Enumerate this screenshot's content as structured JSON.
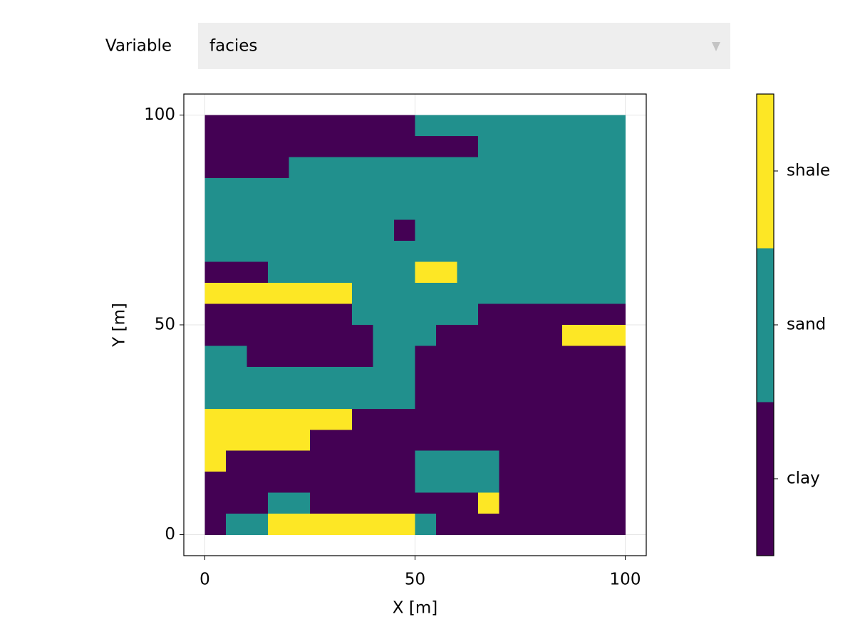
{
  "controls": {
    "label": "Variable",
    "selected": "facies"
  },
  "chart_data": {
    "type": "heatmap",
    "xlabel": "X [m]",
    "ylabel": "Y [m]",
    "xlim": [
      -5,
      105
    ],
    "ylim": [
      -5,
      105
    ],
    "xticks": [
      0,
      50,
      100
    ],
    "yticks": [
      0,
      50,
      100
    ],
    "grid": true,
    "x": [
      2.5,
      7.5,
      12.5,
      17.5,
      22.5,
      27.5,
      32.5,
      37.5,
      42.5,
      47.5,
      52.5,
      57.5,
      62.5,
      67.5,
      72.5,
      77.5,
      82.5,
      87.5,
      92.5,
      97.5
    ],
    "y": [
      97.5,
      92.5,
      87.5,
      82.5,
      77.5,
      72.5,
      67.5,
      62.5,
      57.5,
      52.5,
      47.5,
      42.5,
      37.5,
      32.5,
      27.5,
      22.5,
      17.5,
      12.5,
      7.5,
      2.5
    ],
    "categories": [
      "clay",
      "sand",
      "shale"
    ],
    "colors": [
      "#440154",
      "#21908d",
      "#fde725"
    ],
    "values": [
      [
        0,
        0,
        0,
        0,
        0,
        0,
        0,
        0,
        0,
        0,
        1,
        1,
        1,
        1,
        1,
        1,
        1,
        1,
        1,
        1
      ],
      [
        0,
        0,
        0,
        0,
        0,
        0,
        0,
        0,
        0,
        0,
        0,
        0,
        0,
        1,
        1,
        1,
        1,
        1,
        1,
        1
      ],
      [
        0,
        0,
        0,
        0,
        1,
        1,
        1,
        1,
        1,
        1,
        1,
        1,
        1,
        1,
        1,
        1,
        1,
        1,
        1,
        1
      ],
      [
        1,
        1,
        1,
        1,
        1,
        1,
        1,
        1,
        1,
        1,
        1,
        1,
        1,
        1,
        1,
        1,
        1,
        1,
        1,
        1
      ],
      [
        1,
        1,
        1,
        1,
        1,
        1,
        1,
        1,
        1,
        1,
        1,
        1,
        1,
        1,
        1,
        1,
        1,
        1,
        1,
        1
      ],
      [
        1,
        1,
        1,
        1,
        1,
        1,
        1,
        1,
        1,
        0,
        1,
        1,
        1,
        1,
        1,
        1,
        1,
        1,
        1,
        1
      ],
      [
        1,
        1,
        1,
        1,
        1,
        1,
        1,
        1,
        1,
        1,
        1,
        1,
        1,
        1,
        1,
        1,
        1,
        1,
        1,
        1
      ],
      [
        0,
        0,
        0,
        1,
        1,
        1,
        1,
        1,
        1,
        1,
        2,
        2,
        1,
        1,
        1,
        1,
        1,
        1,
        1,
        1
      ],
      [
        2,
        2,
        2,
        2,
        2,
        2,
        2,
        1,
        1,
        1,
        1,
        1,
        1,
        1,
        1,
        1,
        1,
        1,
        1,
        1
      ],
      [
        0,
        0,
        0,
        0,
        0,
        0,
        0,
        1,
        1,
        1,
        1,
        1,
        1,
        0,
        0,
        0,
        0,
        0,
        0,
        0
      ],
      [
        0,
        0,
        0,
        0,
        0,
        0,
        0,
        0,
        1,
        1,
        1,
        0,
        0,
        0,
        0,
        0,
        0,
        2,
        2,
        2
      ],
      [
        1,
        1,
        0,
        0,
        0,
        0,
        0,
        0,
        1,
        1,
        0,
        0,
        0,
        0,
        0,
        0,
        0,
        0,
        0,
        0
      ],
      [
        1,
        1,
        1,
        1,
        1,
        1,
        1,
        1,
        1,
        1,
        0,
        0,
        0,
        0,
        0,
        0,
        0,
        0,
        0,
        0
      ],
      [
        1,
        1,
        1,
        1,
        1,
        1,
        1,
        1,
        1,
        1,
        0,
        0,
        0,
        0,
        0,
        0,
        0,
        0,
        0,
        0
      ],
      [
        2,
        2,
        2,
        2,
        2,
        2,
        2,
        0,
        0,
        0,
        0,
        0,
        0,
        0,
        0,
        0,
        0,
        0,
        0,
        0
      ],
      [
        2,
        2,
        2,
        2,
        2,
        0,
        0,
        0,
        0,
        0,
        0,
        0,
        0,
        0,
        0,
        0,
        0,
        0,
        0,
        0
      ],
      [
        2,
        0,
        0,
        0,
        0,
        0,
        0,
        0,
        0,
        0,
        1,
        1,
        1,
        1,
        0,
        0,
        0,
        0,
        0,
        0
      ],
      [
        0,
        0,
        0,
        0,
        0,
        0,
        0,
        0,
        0,
        0,
        1,
        1,
        1,
        1,
        0,
        0,
        0,
        0,
        0,
        0
      ],
      [
        0,
        0,
        0,
        1,
        1,
        0,
        0,
        0,
        0,
        0,
        0,
        0,
        0,
        2,
        0,
        0,
        0,
        0,
        0,
        0
      ],
      [
        0,
        1,
        1,
        2,
        2,
        2,
        2,
        2,
        2,
        2,
        1,
        0,
        0,
        0,
        0,
        0,
        0,
        0,
        0,
        0
      ]
    ]
  }
}
